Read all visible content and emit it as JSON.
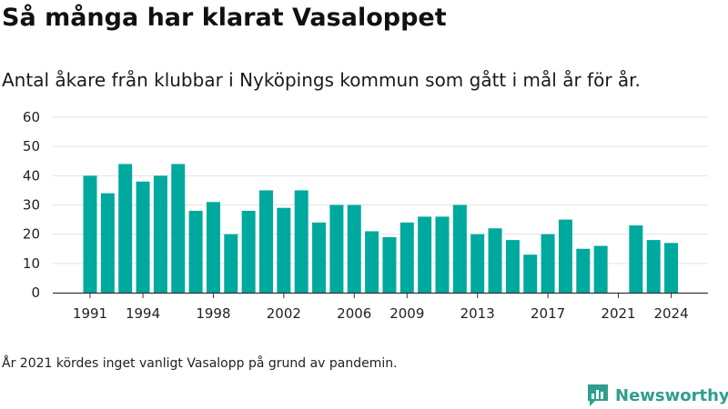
{
  "header": {
    "title": "Så många har klarat Vasaloppet",
    "subtitle": "Antal åkare från klubbar i Nyköpings kommun som gått i mål år för år."
  },
  "footer": {
    "note": "År 2021 kördes inget vanligt Vasalopp på grund av pandemin.",
    "brand": "Newsworthy"
  },
  "colors": {
    "bar": "#00a99d",
    "grid": "#e3e3e3",
    "axis": "#333333",
    "brand": "#2f9e8f"
  },
  "chart_data": {
    "type": "bar",
    "title": "Så många har klarat Vasaloppet",
    "subtitle": "Antal åkare från klubbar i Nyköpings kommun som gått i mål år för år.",
    "xlabel": "",
    "ylabel": "",
    "ylim": [
      0,
      60
    ],
    "yticks": [
      0,
      10,
      20,
      30,
      40,
      50,
      60
    ],
    "xtick_labels": [
      "1991",
      "1994",
      "1998",
      "2002",
      "2006",
      "2009",
      "2013",
      "2017",
      "2021",
      "2024"
    ],
    "grid": true,
    "categories": [
      1991,
      1992,
      1993,
      1994,
      1995,
      1996,
      1997,
      1998,
      1999,
      2000,
      2001,
      2002,
      2003,
      2004,
      2005,
      2006,
      2007,
      2008,
      2009,
      2010,
      2011,
      2012,
      2013,
      2014,
      2015,
      2016,
      2017,
      2018,
      2019,
      2020,
      2021,
      2022,
      2023,
      2024
    ],
    "values": [
      40,
      34,
      44,
      38,
      40,
      44,
      28,
      31,
      20,
      28,
      35,
      29,
      35,
      24,
      30,
      30,
      21,
      19,
      24,
      26,
      26,
      30,
      20,
      22,
      18,
      13,
      20,
      25,
      15,
      16,
      0,
      23,
      18,
      17
    ]
  }
}
